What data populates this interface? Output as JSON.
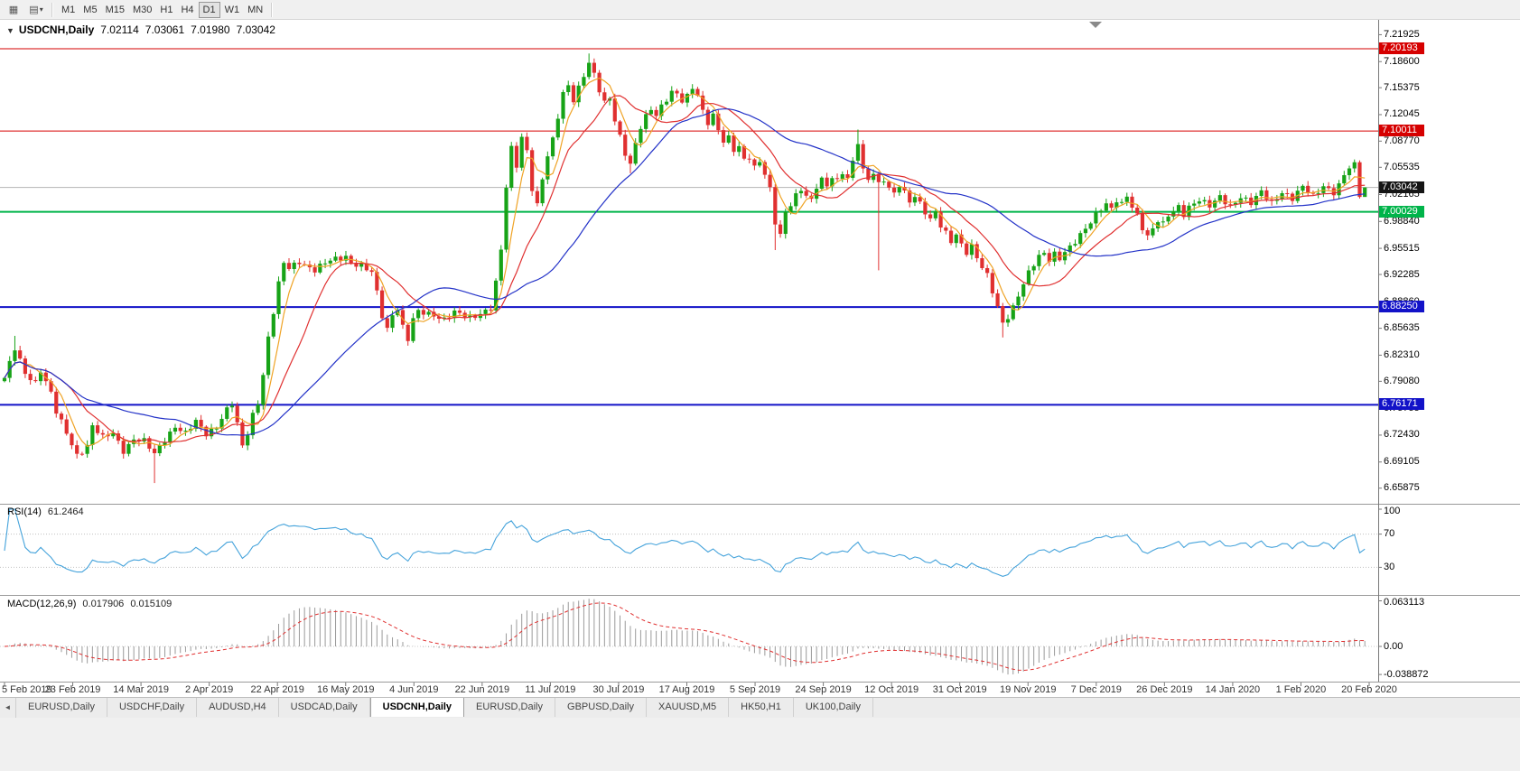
{
  "toolbar": {
    "icon_buttons": [
      {
        "glyph": "▦"
      },
      {
        "glyph": "▤",
        "caret": "▾"
      }
    ],
    "timeframes": [
      "M1",
      "M5",
      "M15",
      "M30",
      "H1",
      "H4",
      "D1",
      "W1",
      "MN"
    ],
    "active_timeframe": "D1"
  },
  "chart": {
    "one_click_arrow": "▼",
    "symbol_period": "USDCNH,Daily",
    "ohlc": {
      "open": "7.02114",
      "high": "7.03061",
      "low": "7.01980",
      "close": "7.03042"
    },
    "price_axis": {
      "ticks": [
        "7.21925",
        "7.18600",
        "7.15375",
        "7.12045",
        "7.08770",
        "7.05535",
        "7.02165",
        "6.98840",
        "6.95515",
        "6.92285",
        "6.88860",
        "6.85635",
        "6.82310",
        "6.79080",
        "6.75755",
        "6.72430",
        "6.69105",
        "6.65875"
      ],
      "level_labels": [
        {
          "text": "7.20193",
          "bg": "#d60000",
          "fg": "#ffffff"
        },
        {
          "text": "7.10011",
          "bg": "#d60000",
          "fg": "#ffffff"
        },
        {
          "text": "7.03042",
          "bg": "#151515",
          "fg": "#ffffff"
        },
        {
          "text": "7.00029",
          "bg": "#00b44a",
          "fg": "#ffffff"
        },
        {
          "text": "6.88250",
          "bg": "#1212c8",
          "fg": "#ffffff"
        },
        {
          "text": "6.76171",
          "bg": "#1212c8",
          "fg": "#ffffff"
        }
      ]
    },
    "date_axis": [
      "5 Feb 2019",
      "23 Feb 2019",
      "14 Mar 2019",
      "2 Apr 2019",
      "22 Apr 2019",
      "16 May 2019",
      "4 Jun 2019",
      "22 Jun 2019",
      "11 Jul 2019",
      "30 Jul 2019",
      "17 Aug 2019",
      "5 Sep 2019",
      "24 Sep 2019",
      "12 Oct 2019",
      "31 Oct 2019",
      "19 Nov 2019",
      "7 Dec 2019",
      "26 Dec 2019",
      "14 Jan 2020",
      "1 Feb 2020",
      "20 Feb 2020"
    ]
  },
  "rsi": {
    "label": "RSI(14)",
    "value": "61.2464",
    "axis": [
      "100",
      "70",
      "30"
    ]
  },
  "macd": {
    "label": "MACD(12,26,9)",
    "value_main": "0.017906",
    "value_signal": "0.015109",
    "axis": [
      "0.063113",
      "0.00",
      "-0.038872"
    ]
  },
  "tabs": {
    "left_arrow": "◄",
    "active_index": 4,
    "items": [
      "EURUSD,Daily",
      "USDCHF,Daily",
      "AUDUSD,H4",
      "USDCAD,Daily",
      "USDCNH,Daily",
      "EURUSD,Daily",
      "GBPUSD,Daily",
      "XAUUSD,M5",
      "HK50,H1",
      "UK100,Daily"
    ]
  },
  "chart_data": {
    "type": "candlestick",
    "title": "USDCNH,Daily",
    "current_ohlc": {
      "open": 7.02114,
      "high": 7.03061,
      "low": 7.0198,
      "close": 7.03042
    },
    "y_axis_range": [
      6.645,
      7.232
    ],
    "bid_price": 7.03042,
    "candle_count": 264,
    "up_color": "#17a317",
    "down_color": "#e03030",
    "horizontal_levels": [
      {
        "price": 7.20193,
        "color": "#d60000",
        "width": 1
      },
      {
        "price": 7.10011,
        "color": "#d60000",
        "width": 1
      },
      {
        "price": 7.00029,
        "color": "#00b44a",
        "width": 2
      },
      {
        "price": 6.8825,
        "color": "#1212c8",
        "width": 2
      },
      {
        "price": 6.76171,
        "color": "#1212c8",
        "width": 2
      }
    ],
    "close_path_anchors": [
      [
        0,
        6.795
      ],
      [
        2,
        6.83
      ],
      [
        4,
        6.8
      ],
      [
        6,
        6.79
      ],
      [
        7,
        6.806
      ],
      [
        9,
        6.776
      ],
      [
        10,
        6.752
      ],
      [
        12,
        6.726
      ],
      [
        14,
        6.7
      ],
      [
        16,
        6.712
      ],
      [
        17,
        6.736
      ],
      [
        19,
        6.72
      ],
      [
        21,
        6.726
      ],
      [
        23,
        6.706
      ],
      [
        25,
        6.72
      ],
      [
        27,
        6.716
      ],
      [
        29,
        6.7
      ],
      [
        31,
        6.72
      ],
      [
        33,
        6.736
      ],
      [
        35,
        6.726
      ],
      [
        37,
        6.74
      ],
      [
        39,
        6.726
      ],
      [
        41,
        6.736
      ],
      [
        43,
        6.756
      ],
      [
        44,
        6.762
      ],
      [
        45,
        6.736
      ],
      [
        46,
        6.71
      ],
      [
        47,
        6.726
      ],
      [
        48,
        6.75
      ],
      [
        49,
        6.766
      ],
      [
        50,
        6.8
      ],
      [
        51,
        6.845
      ],
      [
        52,
        6.876
      ],
      [
        53,
        6.91
      ],
      [
        54,
        6.936
      ],
      [
        55,
        6.93
      ],
      [
        57,
        6.94
      ],
      [
        59,
        6.932
      ],
      [
        60,
        6.928
      ],
      [
        62,
        6.936
      ],
      [
        64,
        6.942
      ],
      [
        66,
        6.946
      ],
      [
        67,
        6.938
      ],
      [
        69,
        6.933
      ],
      [
        71,
        6.924
      ],
      [
        72,
        6.9
      ],
      [
        73,
        6.872
      ],
      [
        74,
        6.856
      ],
      [
        75,
        6.875
      ],
      [
        76,
        6.882
      ],
      [
        77,
        6.858
      ],
      [
        78,
        6.842
      ],
      [
        79,
        6.866
      ],
      [
        80,
        6.876
      ],
      [
        83,
        6.874
      ],
      [
        85,
        6.868
      ],
      [
        87,
        6.875
      ],
      [
        90,
        6.869
      ],
      [
        92,
        6.876
      ],
      [
        94,
        6.882
      ],
      [
        95,
        6.912
      ],
      [
        96,
        6.952
      ],
      [
        97,
        7.03
      ],
      [
        98,
        7.078
      ],
      [
        99,
        7.058
      ],
      [
        100,
        7.094
      ],
      [
        101,
        7.077
      ],
      [
        102,
        7.03
      ],
      [
        103,
        7.008
      ],
      [
        104,
        7.04
      ],
      [
        105,
        7.068
      ],
      [
        106,
        7.088
      ],
      [
        107,
        7.118
      ],
      [
        108,
        7.148
      ],
      [
        109,
        7.158
      ],
      [
        110,
        7.14
      ],
      [
        111,
        7.154
      ],
      [
        112,
        7.168
      ],
      [
        113,
        7.183
      ],
      [
        114,
        7.168
      ],
      [
        115,
        7.15
      ],
      [
        116,
        7.136
      ],
      [
        117,
        7.142
      ],
      [
        118,
        7.116
      ],
      [
        119,
        7.094
      ],
      [
        120,
        7.072
      ],
      [
        121,
        7.058
      ],
      [
        122,
        7.082
      ],
      [
        123,
        7.104
      ],
      [
        124,
        7.118
      ],
      [
        125,
        7.128
      ],
      [
        126,
        7.122
      ],
      [
        127,
        7.132
      ],
      [
        128,
        7.14
      ],
      [
        129,
        7.148
      ],
      [
        130,
        7.144
      ],
      [
        131,
        7.136
      ],
      [
        132,
        7.142
      ],
      [
        133,
        7.154
      ],
      [
        134,
        7.146
      ],
      [
        135,
        7.126
      ],
      [
        136,
        7.112
      ],
      [
        137,
        7.12
      ],
      [
        138,
        7.1
      ],
      [
        139,
        7.086
      ],
      [
        140,
        7.09
      ],
      [
        141,
        7.076
      ],
      [
        142,
        7.082
      ],
      [
        143,
        7.066
      ],
      [
        144,
        7.07
      ],
      [
        145,
        7.056
      ],
      [
        146,
        7.062
      ],
      [
        147,
        7.046
      ],
      [
        148,
        7.026
      ],
      [
        149,
        6.986
      ],
      [
        150,
        6.972
      ],
      [
        151,
        7.0
      ],
      [
        152,
        7.012
      ],
      [
        153,
        7.022
      ],
      [
        154,
        7.028
      ],
      [
        155,
        7.02
      ],
      [
        156,
        7.012
      ],
      [
        157,
        7.03
      ],
      [
        158,
        7.04
      ],
      [
        159,
        7.032
      ],
      [
        160,
        7.046
      ],
      [
        161,
        7.04
      ],
      [
        162,
        7.05
      ],
      [
        163,
        7.042
      ],
      [
        164,
        7.06
      ],
      [
        165,
        7.085
      ],
      [
        166,
        7.05
      ],
      [
        167,
        7.04
      ],
      [
        168,
        7.05
      ],
      [
        169,
        7.036
      ],
      [
        170,
        7.042
      ],
      [
        171,
        7.03
      ],
      [
        172,
        7.022
      ],
      [
        173,
        7.032
      ],
      [
        174,
        7.022
      ],
      [
        175,
        7.012
      ],
      [
        176,
        7.02
      ],
      [
        177,
        7.012
      ],
      [
        178,
        7.002
      ],
      [
        179,
        6.992
      ],
      [
        180,
        7.0
      ],
      [
        181,
        6.982
      ],
      [
        182,
        6.972
      ],
      [
        183,
        6.962
      ],
      [
        184,
        6.972
      ],
      [
        185,
        6.96
      ],
      [
        186,
        6.952
      ],
      [
        187,
        6.96
      ],
      [
        188,
        6.944
      ],
      [
        189,
        6.932
      ],
      [
        190,
        6.92
      ],
      [
        191,
        6.9
      ],
      [
        192,
        6.882
      ],
      [
        193,
        6.862
      ],
      [
        194,
        6.872
      ],
      [
        195,
        6.884
      ],
      [
        196,
        6.898
      ],
      [
        197,
        6.912
      ],
      [
        198,
        6.924
      ],
      [
        199,
        6.934
      ],
      [
        200,
        6.944
      ],
      [
        201,
        6.948
      ],
      [
        202,
        6.942
      ],
      [
        203,
        6.95
      ],
      [
        204,
        6.944
      ],
      [
        205,
        6.952
      ],
      [
        206,
        6.956
      ],
      [
        207,
        6.962
      ],
      [
        208,
        6.97
      ],
      [
        209,
        6.978
      ],
      [
        210,
        6.988
      ],
      [
        211,
        6.998
      ],
      [
        212,
        7.006
      ],
      [
        213,
        7.012
      ],
      [
        214,
        7.004
      ],
      [
        215,
        7.014
      ],
      [
        216,
        7.008
      ],
      [
        217,
        7.018
      ],
      [
        218,
        7.006
      ],
      [
        219,
        6.996
      ],
      [
        220,
        6.982
      ],
      [
        221,
        6.972
      ],
      [
        222,
        6.98
      ],
      [
        223,
        6.99
      ],
      [
        224,
        6.984
      ],
      [
        225,
        6.994
      ],
      [
        226,
        7.0
      ],
      [
        227,
        7.006
      ],
      [
        228,
        6.998
      ],
      [
        229,
        7.008
      ],
      [
        231,
        7.016
      ],
      [
        233,
        7.006
      ],
      [
        235,
        7.018
      ],
      [
        237,
        7.008
      ],
      [
        239,
        7.02
      ],
      [
        241,
        7.01
      ],
      [
        243,
        7.024
      ],
      [
        245,
        7.012
      ],
      [
        247,
        7.026
      ],
      [
        249,
        7.016
      ],
      [
        251,
        7.03
      ],
      [
        253,
        7.02
      ],
      [
        255,
        7.034
      ],
      [
        257,
        7.024
      ],
      [
        258,
        7.032
      ],
      [
        259,
        7.044
      ],
      [
        260,
        7.054
      ],
      [
        261,
        7.058
      ],
      [
        262,
        7.022
      ],
      [
        263,
        7.03
      ]
    ],
    "wick_overrides": {
      "2": {
        "high": 6.847
      },
      "29": {
        "low": 6.665
      },
      "113": {
        "high": 7.196
      },
      "121": {
        "low": 7.048
      },
      "149": {
        "low": 6.953
      },
      "165": {
        "high": 7.102
      },
      "169": {
        "low": 6.928
      },
      "193": {
        "low": 6.845
      },
      "261": {
        "high": 7.065
      },
      "263": {
        "high": 7.03061,
        "low": 7.0198
      }
    },
    "moving_averages": [
      {
        "period": 5,
        "color": "#efa325"
      },
      {
        "period": 13,
        "color": "#e03030"
      },
      {
        "period": 34,
        "color": "#2433c8"
      }
    ],
    "rsi": {
      "period": 14,
      "current": 61.2464,
      "levels": [
        70,
        30
      ],
      "color": "#45a3db",
      "range": [
        0,
        100
      ]
    },
    "macd": {
      "fast": 12,
      "slow": 26,
      "signal_period": 9,
      "current_main": 0.017906,
      "current_signal": 0.015109,
      "axis": [
        0.063113,
        0,
        -0.038872
      ],
      "histogram_color": "#9a9a9a",
      "signal_color": "#e03030"
    }
  }
}
